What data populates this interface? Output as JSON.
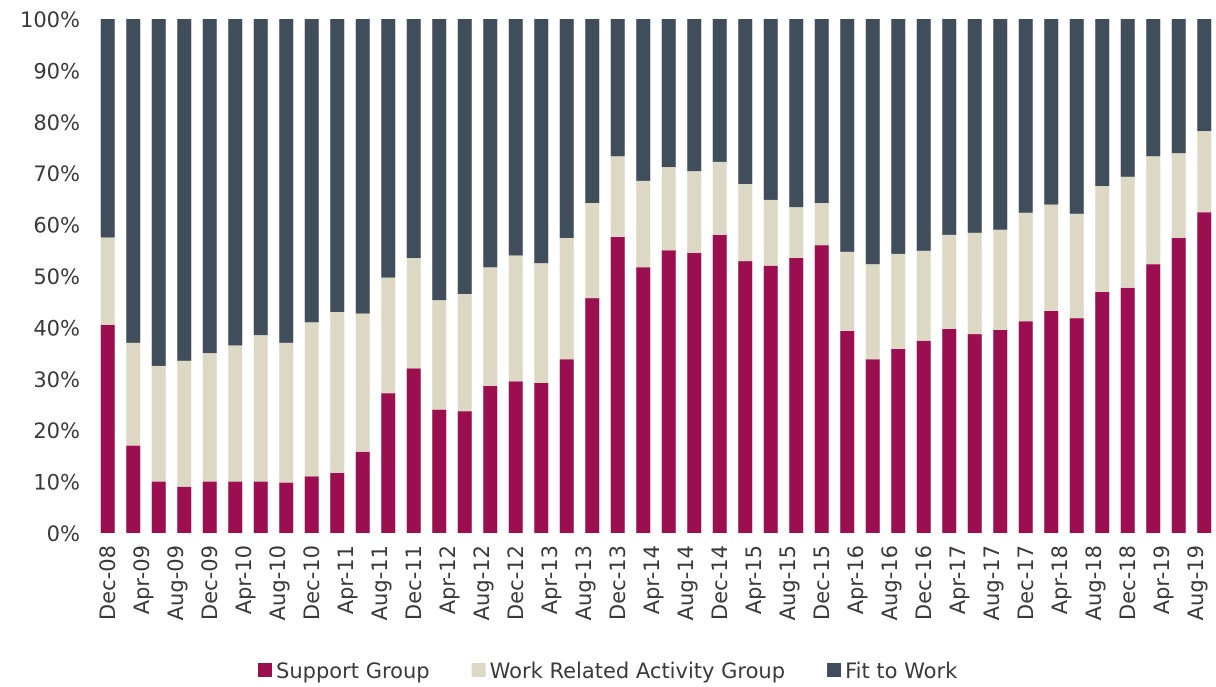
{
  "chart_data": {
    "type": "stacked_bar",
    "categories": [
      null,
      null,
      null,
      null,
      null,
      null,
      null,
      null,
      null,
      null,
      null,
      null,
      null,
      null,
      null,
      null,
      null,
      null,
      null,
      null,
      null,
      null,
      null,
      null,
      null,
      null,
      null,
      null,
      null,
      null,
      null,
      null,
      null,
      null,
      null,
      null,
      null,
      null,
      null,
      null,
      null,
      null,
      null,
      null
    ],
    "x_labels": [
      "Dec-08",
      "Apr-09",
      "Aug-09",
      "Dec-09",
      "Apr-10",
      "Aug-10",
      "Dec-10",
      "Apr-11",
      "Aug-11",
      "Dec-11",
      "Apr-12",
      "Aug-12",
      "Dec-12",
      "Apr-13",
      "Aug-13",
      "Dec-13",
      "Apr-14",
      "Aug-14",
      "Dec-14",
      "Apr-15",
      "Aug-15",
      "Dec-15",
      "Apr-16",
      "Aug-16",
      "Dec-16",
      "Apr-17",
      "Aug-17",
      "Dec-17",
      "Apr-18",
      "Aug-18",
      "Dec-18",
      "Apr-19",
      "Aug-19"
    ],
    "series": [
      {
        "name": "Support Group",
        "color": "#9b0e4f",
        "values": [
          40.5,
          17,
          10,
          9,
          10,
          10,
          10,
          9.8,
          11,
          11.7,
          15.8,
          27.2,
          32,
          24,
          23.7,
          28.6,
          29.5,
          29.2,
          33.8,
          45.7,
          57.6,
          51.7,
          55,
          54.5,
          58,
          52.9,
          52,
          53.5,
          56,
          39.3,
          33.8,
          35.8,
          37.4,
          39.7,
          38.7,
          39.5,
          41.2,
          43.2,
          41.8,
          46.9,
          47.7,
          52.3,
          57.4,
          62.4
        ]
      },
      {
        "name": "Work Related Activity Group",
        "color": "#ddd8c4",
        "values": [
          17,
          20,
          22.5,
          24.5,
          25,
          26.5,
          28.5,
          27.2,
          30,
          31.3,
          26.9,
          22.5,
          21.5,
          21.3,
          22.8,
          23.1,
          24.5,
          23.3,
          23.6,
          18.5,
          15.7,
          16.8,
          16.2,
          15.9,
          14.2,
          15,
          12.8,
          9.9,
          8.2,
          15.4,
          18.5,
          18.5,
          17.5,
          18.3,
          19.7,
          19.5,
          21.1,
          20.7,
          20.3,
          20.6,
          21.6,
          21,
          16.5,
          15.8
        ]
      },
      {
        "name": "Fit to Work",
        "color": "#404e5c",
        "values": [
          42.5,
          63,
          67.5,
          66.5,
          65,
          63.5,
          61.5,
          63,
          59,
          57,
          57.3,
          50.3,
          46.5,
          54.7,
          53.5,
          48.3,
          46,
          47.5,
          42.6,
          35.8,
          26.7,
          31.5,
          28.8,
          29.6,
          27.8,
          32.1,
          35.2,
          36.6,
          35.8,
          45.3,
          47.7,
          45.7,
          45.1,
          42,
          41.6,
          41,
          37.7,
          36.1,
          37.9,
          32.5,
          30.7,
          26.7,
          26.1,
          21.8
        ]
      }
    ],
    "ylim": [
      0,
      100
    ],
    "yticks": [
      {
        "value": 0,
        "label": "0%"
      },
      {
        "value": 10,
        "label": "10%"
      },
      {
        "value": 20,
        "label": "20%"
      },
      {
        "value": 30,
        "label": "30%"
      },
      {
        "value": 40,
        "label": "40%"
      },
      {
        "value": 50,
        "label": "50%"
      },
      {
        "value": 60,
        "label": "60%"
      },
      {
        "value": 70,
        "label": "70%"
      },
      {
        "value": 80,
        "label": "80%"
      },
      {
        "value": 90,
        "label": "90%"
      },
      {
        "value": 100,
        "label": "100%"
      }
    ],
    "legend": "bottom"
  }
}
